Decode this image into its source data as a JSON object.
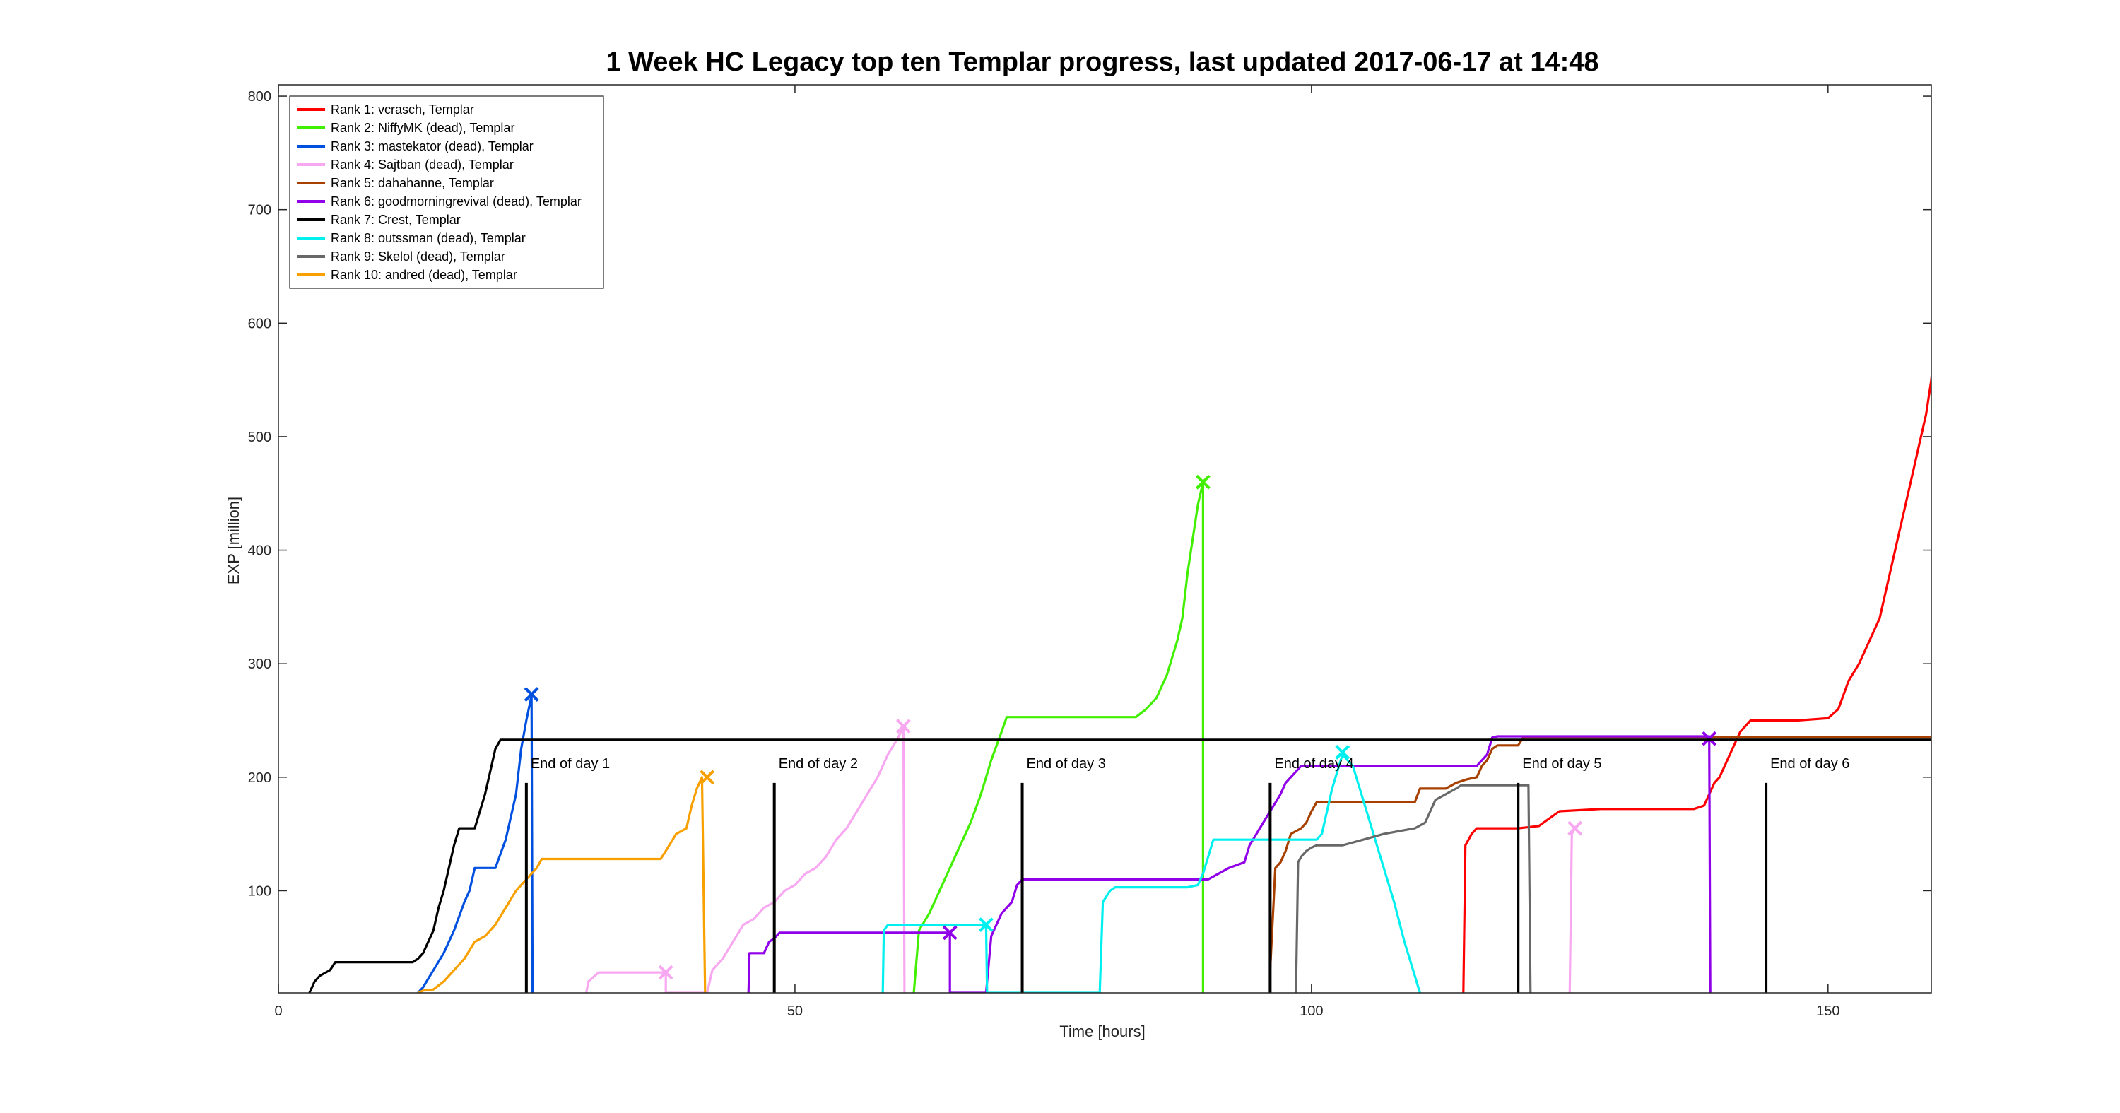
{
  "chart_data": {
    "type": "line",
    "title": "1 Week HC Legacy top ten Templar progress, last updated 2017-06-17 at 14:48",
    "xlabel": "Time [hours]",
    "ylabel": "EXP [million]",
    "xlim": [
      0,
      160
    ],
    "ylim": [
      10,
      810
    ],
    "xticks": [
      0,
      50,
      100,
      150
    ],
    "yticks": [
      100,
      200,
      300,
      400,
      500,
      600,
      700,
      800
    ],
    "legend_position": "top-left",
    "grid": false,
    "series": [
      {
        "name": "Rank 1: vcrasch, Templar",
        "color": "#ff0000",
        "dead": false,
        "points": [
          [
            114.7,
            10
          ],
          [
            114.9,
            140
          ],
          [
            115.5,
            150
          ],
          [
            116,
            155
          ],
          [
            120,
            155
          ],
          [
            122,
            157
          ],
          [
            124,
            170
          ],
          [
            128,
            172
          ],
          [
            133,
            172
          ],
          [
            137,
            172
          ],
          [
            138,
            175
          ],
          [
            138.5,
            185
          ],
          [
            139,
            195
          ],
          [
            139.5,
            200
          ],
          [
            140,
            210
          ],
          [
            140.5,
            220
          ],
          [
            141,
            230
          ],
          [
            141.5,
            240
          ],
          [
            142,
            245
          ],
          [
            142.5,
            250
          ],
          [
            147,
            250
          ],
          [
            150,
            252
          ],
          [
            151,
            260
          ],
          [
            152,
            285
          ],
          [
            153,
            300
          ],
          [
            154,
            320
          ],
          [
            155,
            340
          ],
          [
            155.5,
            360
          ],
          [
            156,
            380
          ],
          [
            156.5,
            400
          ],
          [
            157,
            420
          ],
          [
            157.5,
            440
          ],
          [
            158,
            460
          ],
          [
            158.5,
            480
          ],
          [
            159,
            500
          ],
          [
            159.5,
            520
          ],
          [
            160,
            550
          ],
          [
            160.5,
            600
          ],
          [
            161,
            620
          ],
          [
            161.5,
            650
          ],
          [
            162,
            670
          ]
        ]
      },
      {
        "name": "Rank 2: NiffyMK (dead), Templar",
        "color": "#40f000",
        "dead": true,
        "points": [
          [
            61.5,
            10
          ],
          [
            62,
            65
          ],
          [
            63,
            80
          ],
          [
            64,
            100
          ],
          [
            65,
            120
          ],
          [
            66,
            140
          ],
          [
            67,
            160
          ],
          [
            68,
            185
          ],
          [
            69,
            215
          ],
          [
            70,
            240
          ],
          [
            70.5,
            253
          ],
          [
            83,
            253
          ],
          [
            84,
            260
          ],
          [
            85,
            270
          ],
          [
            86,
            290
          ],
          [
            87,
            320
          ],
          [
            87.5,
            340
          ],
          [
            88,
            380
          ],
          [
            88.5,
            410
          ],
          [
            89,
            440
          ],
          [
            89.5,
            460
          ],
          [
            89.5,
            10
          ]
        ],
        "end": [
          89.5,
          460
        ]
      },
      {
        "name": "Rank 3: mastekator (dead), Templar",
        "color": "#0050e0",
        "dead": true,
        "points": [
          [
            13.5,
            10
          ],
          [
            14,
            15
          ],
          [
            15,
            30
          ],
          [
            16,
            45
          ],
          [
            17,
            65
          ],
          [
            18,
            90
          ],
          [
            18.5,
            100
          ],
          [
            19,
            120
          ],
          [
            21,
            120
          ],
          [
            22,
            145
          ],
          [
            23,
            185
          ],
          [
            23.5,
            225
          ],
          [
            24,
            250
          ],
          [
            24.5,
            272
          ],
          [
            24.6,
            10
          ]
        ],
        "end": [
          24.5,
          273
        ]
      },
      {
        "name": "Rank 4: Sajtban (dead), Templar",
        "color": "#f8a8f0",
        "dead": true,
        "points": [
          [
            29.8,
            10
          ],
          [
            30,
            20
          ],
          [
            31,
            28
          ],
          [
            37.5,
            28
          ],
          [
            37.5,
            10
          ],
          [
            41.5,
            10
          ],
          [
            42,
            30
          ],
          [
            43,
            40
          ],
          [
            44,
            55
          ],
          [
            45,
            70
          ],
          [
            46,
            75
          ],
          [
            47,
            85
          ],
          [
            48,
            90
          ],
          [
            49,
            100
          ],
          [
            50,
            105
          ],
          [
            51,
            115
          ],
          [
            52,
            120
          ],
          [
            53,
            130
          ],
          [
            54,
            145
          ],
          [
            55,
            155
          ],
          [
            56,
            170
          ],
          [
            57,
            185
          ],
          [
            58,
            200
          ],
          [
            59,
            220
          ],
          [
            60,
            235
          ],
          [
            60.5,
            245
          ],
          [
            60.6,
            10
          ]
        ],
        "end": [
          60.5,
          245
        ]
      },
      {
        "name": "Rank 5: dahahanne, Templar",
        "color": "#a84000",
        "dead": false,
        "points": [
          [
            96,
            30
          ],
          [
            96.5,
            120
          ],
          [
            97,
            125
          ],
          [
            97.5,
            135
          ],
          [
            98,
            150
          ],
          [
            99,
            155
          ],
          [
            99.5,
            160
          ],
          [
            100,
            170
          ],
          [
            100.5,
            178
          ],
          [
            110,
            178
          ],
          [
            110.5,
            190
          ],
          [
            113,
            190
          ],
          [
            114,
            195
          ],
          [
            115,
            198
          ],
          [
            116,
            200
          ],
          [
            116.5,
            210
          ],
          [
            117,
            215
          ],
          [
            117.5,
            225
          ],
          [
            118,
            228
          ],
          [
            120,
            228
          ],
          [
            120.5,
            235
          ],
          [
            160,
            235
          ]
        ]
      },
      {
        "name": "Rank 6: goodmorningrevival (dead), Templar",
        "color": "#9000e8",
        "dead": true,
        "points": [
          [
            45.5,
            10
          ],
          [
            45.6,
            45
          ],
          [
            47,
            45
          ],
          [
            47.5,
            55
          ],
          [
            48,
            58
          ],
          [
            48.5,
            63
          ],
          [
            65,
            63
          ],
          [
            65,
            10
          ],
          [
            68.5,
            10
          ],
          [
            69,
            60
          ],
          [
            70,
            80
          ],
          [
            71,
            90
          ],
          [
            71.5,
            105
          ],
          [
            72,
            110
          ],
          [
            85,
            110
          ],
          [
            88,
            110
          ],
          [
            90,
            110
          ],
          [
            91,
            115
          ],
          [
            92,
            120
          ],
          [
            93.5,
            125
          ],
          [
            94,
            140
          ],
          [
            95,
            155
          ],
          [
            96,
            170
          ],
          [
            97,
            185
          ],
          [
            97.5,
            195
          ],
          [
            98,
            200
          ],
          [
            99,
            210
          ],
          [
            110,
            210
          ],
          [
            113,
            210
          ],
          [
            116,
            210
          ],
          [
            117,
            220
          ],
          [
            117.5,
            235
          ],
          [
            118,
            236
          ],
          [
            138.5,
            236
          ],
          [
            138.6,
            10
          ]
        ],
        "end": [
          138.5,
          234
        ]
      },
      {
        "name": "Rank 7: Crest, Templar",
        "color": "#000000",
        "dead": false,
        "points": [
          [
            3,
            10
          ],
          [
            3.5,
            20
          ],
          [
            4,
            25
          ],
          [
            5,
            30
          ],
          [
            5.5,
            37
          ],
          [
            13,
            37
          ],
          [
            13.5,
            40
          ],
          [
            14,
            45
          ],
          [
            15,
            65
          ],
          [
            15.5,
            85
          ],
          [
            16,
            100
          ],
          [
            16.5,
            120
          ],
          [
            17,
            140
          ],
          [
            17.5,
            155
          ],
          [
            19,
            155
          ],
          [
            19.5,
            170
          ],
          [
            20,
            185
          ],
          [
            20.5,
            205
          ],
          [
            21,
            225
          ],
          [
            21.5,
            233
          ],
          [
            160,
            233
          ]
        ]
      },
      {
        "name": "Rank 8: outssman (dead), Templar",
        "color": "#00f0f0",
        "dead": true,
        "points": [
          [
            58.5,
            10
          ],
          [
            58.6,
            65
          ],
          [
            59,
            70
          ],
          [
            68.5,
            70
          ],
          [
            68.6,
            10
          ],
          [
            79.5,
            10
          ],
          [
            79.8,
            90
          ],
          [
            80.5,
            100
          ],
          [
            81,
            103
          ],
          [
            88,
            103
          ],
          [
            89,
            105
          ],
          [
            89.5,
            115
          ],
          [
            90,
            130
          ],
          [
            90.5,
            145
          ],
          [
            100.5,
            145
          ],
          [
            101,
            150
          ],
          [
            102,
            190
          ],
          [
            103,
            220
          ],
          [
            104,
            210
          ],
          [
            105,
            180
          ],
          [
            106,
            150
          ],
          [
            107,
            120
          ],
          [
            108,
            90
          ],
          [
            109,
            55
          ],
          [
            110,
            25
          ],
          [
            110.5,
            10
          ]
        ],
        "end": [
          103,
          222
        ]
      },
      {
        "name": "Rank 9: Skelol (dead), Templar",
        "color": "#686868",
        "dead": true,
        "points": [
          [
            98.5,
            10
          ],
          [
            98.7,
            125
          ],
          [
            99,
            130
          ],
          [
            99.5,
            135
          ],
          [
            100,
            138
          ],
          [
            100.5,
            140
          ],
          [
            103,
            140
          ],
          [
            105,
            145
          ],
          [
            107,
            150
          ],
          [
            110,
            155
          ],
          [
            111,
            160
          ],
          [
            112,
            180
          ],
          [
            113,
            185
          ],
          [
            114,
            190
          ],
          [
            114.5,
            193
          ],
          [
            121,
            193
          ],
          [
            121.2,
            10
          ]
        ]
      },
      {
        "name": "Rank 10: andred (dead), Templar",
        "color": "#f8a000",
        "dead": true,
        "points": [
          [
            13.5,
            10
          ],
          [
            14,
            12
          ],
          [
            15,
            13
          ],
          [
            16,
            20
          ],
          [
            17,
            30
          ],
          [
            18,
            40
          ],
          [
            19,
            55
          ],
          [
            20,
            60
          ],
          [
            21,
            70
          ],
          [
            22,
            85
          ],
          [
            23,
            100
          ],
          [
            24,
            110
          ],
          [
            25,
            120
          ],
          [
            25.5,
            128
          ],
          [
            37,
            128
          ],
          [
            37.5,
            135
          ],
          [
            38.5,
            150
          ],
          [
            39.5,
            155
          ],
          [
            40,
            175
          ],
          [
            40.5,
            190
          ],
          [
            41,
            200
          ],
          [
            41.3,
            10
          ]
        ],
        "end": [
          41.5,
          200
        ]
      }
    ],
    "extra_markers": [
      {
        "x": 37.5,
        "y": 28,
        "color": "#f8a8f0"
      },
      {
        "x": 65,
        "y": 63,
        "color": "#9000e8"
      },
      {
        "x": 68.5,
        "y": 70,
        "color": "#00f0f0"
      },
      {
        "x": 125.5,
        "y": 155,
        "color": "#f8a8f0"
      }
    ],
    "extra_segments": [
      {
        "color": "#f8a8f0",
        "points": [
          [
            125,
            10
          ],
          [
            125.2,
            150
          ],
          [
            125.5,
            155
          ]
        ]
      }
    ],
    "day_markers": [
      {
        "x": 24,
        "label": "End of day 1"
      },
      {
        "x": 48,
        "label": "End of day 2"
      },
      {
        "x": 72,
        "label": "End of day 3"
      },
      {
        "x": 96,
        "label": "End of day 4"
      },
      {
        "x": 120,
        "label": "End of day 5"
      },
      {
        "x": 144,
        "label": "End of day 6"
      }
    ],
    "day_marker_top": 195
  }
}
